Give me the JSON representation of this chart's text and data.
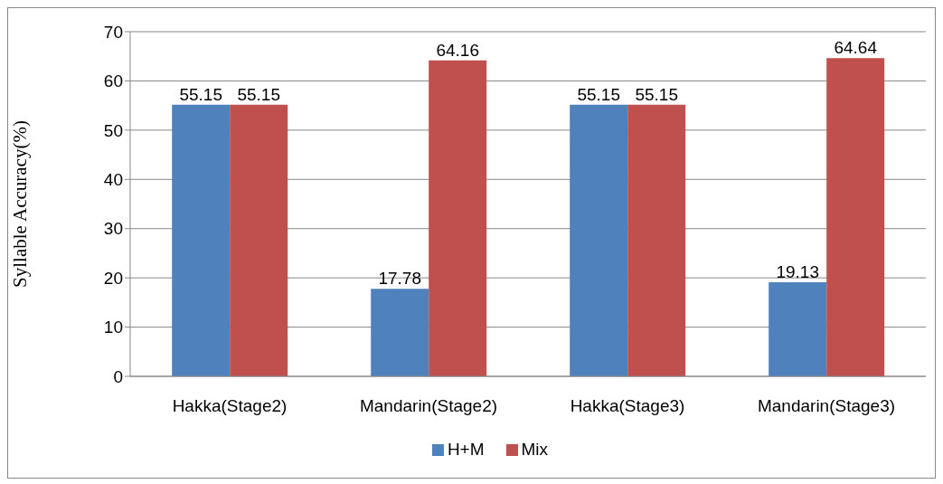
{
  "chart_data": {
    "type": "bar",
    "ylabel": "Syllable Accuracy(%)",
    "categories": [
      "Hakka(Stage2)",
      "Mandarin(Stage2)",
      "Hakka(Stage3)",
      "Mandarin(Stage3)"
    ],
    "series": [
      {
        "name": "H+M",
        "color": "#4f81bd",
        "values": [
          55.15,
          17.78,
          55.15,
          19.13
        ]
      },
      {
        "name": "Mix",
        "color": "#c0504d",
        "values": [
          55.15,
          64.16,
          55.15,
          64.64
        ]
      }
    ],
    "ylim": [
      0,
      70
    ],
    "yticks": [
      0,
      10,
      20,
      30,
      40,
      50,
      60,
      70
    ],
    "grid": "y",
    "legend": "bottom",
    "data_labels": true
  }
}
